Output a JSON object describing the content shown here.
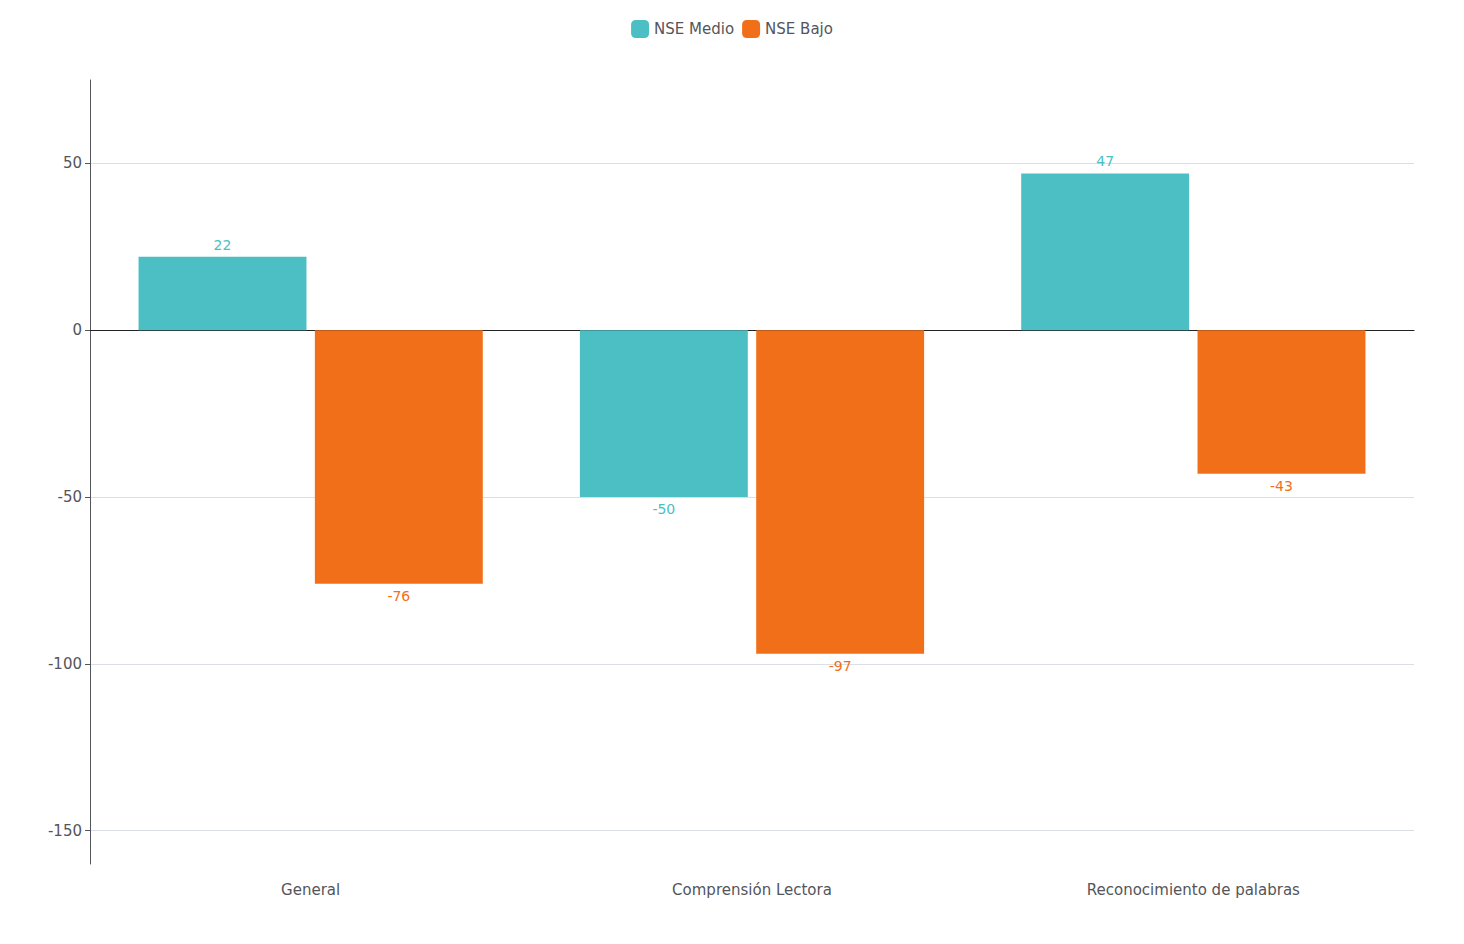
{
  "chart_data": {
    "type": "bar",
    "categories": [
      "General",
      "Comprensión Lectora",
      "Reconocimiento de palabras"
    ],
    "series": [
      {
        "name": "NSE Medio",
        "color": "#4BBFC4",
        "values": [
          22,
          -50,
          47
        ]
      },
      {
        "name": "NSE Bajo",
        "color": "#F26F1A",
        "values": [
          -76,
          -97,
          -43
        ]
      }
    ],
    "ylim": [
      -160,
      75
    ],
    "yticks": [
      50,
      0,
      -50,
      -100,
      -150
    ],
    "grid": true,
    "legend": "top",
    "data_labels": true
  }
}
